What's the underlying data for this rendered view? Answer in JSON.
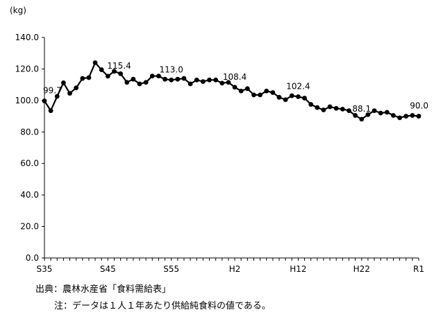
{
  "chart_data": {
    "type": "line",
    "title": "",
    "ylabel": "(kg)",
    "xlabel": "",
    "ylim": [
      0,
      140
    ],
    "yticks": [
      0,
      20,
      40,
      60,
      80,
      100,
      120,
      140
    ],
    "ytick_labels": [
      "0.0",
      "20.0",
      "40.0",
      "60.0",
      "80.0",
      "100.0",
      "120.0",
      "140.0"
    ],
    "grid": false,
    "legend": "none",
    "x_tick_labels": [
      {
        "label": "S35",
        "index": 0
      },
      {
        "label": "S45",
        "index": 10
      },
      {
        "label": "S55",
        "index": 20
      },
      {
        "label": "H2",
        "index": 30
      },
      {
        "label": "H12",
        "index": 40
      },
      {
        "label": "H22",
        "index": 50
      },
      {
        "label": "R1",
        "index": 59
      }
    ],
    "annotations": [
      {
        "text": "99.7",
        "index": 0
      },
      {
        "text": "115.4",
        "index": 10
      },
      {
        "text": "113.0",
        "index": 20
      },
      {
        "text": "108.4",
        "index": 30
      },
      {
        "text": "102.4",
        "index": 40
      },
      {
        "text": "88.1",
        "index": 50
      },
      {
        "text": "90.0",
        "index": 59
      }
    ],
    "series": [
      {
        "values": [
          99.7,
          93.5,
          102.6,
          111.2,
          104.5,
          108.0,
          114.0,
          114.5,
          124.0,
          119.5,
          115.4,
          118.5,
          117.0,
          111.5,
          113.5,
          110.5,
          111.5,
          115.5,
          115.5,
          113.5,
          113.0,
          113.5,
          114.0,
          110.5,
          113.0,
          112.0,
          113.0,
          113.0,
          111.0,
          111.5,
          108.4,
          106.0,
          107.5,
          103.5,
          103.5,
          106.0,
          105.0,
          102.0,
          100.5,
          103.0,
          102.4,
          101.5,
          97.5,
          95.5,
          94.0,
          96.0,
          95.0,
          94.5,
          93.5,
          90.5,
          88.1,
          91.0,
          93.5,
          92.0,
          92.5,
          90.5,
          89.0,
          90.0,
          90.5,
          90.0
        ]
      }
    ]
  },
  "notes": {
    "source": "出典：農林水産省「食料需給表」",
    "note": "注：データは１人１年あたり供給純食料の値である。"
  }
}
